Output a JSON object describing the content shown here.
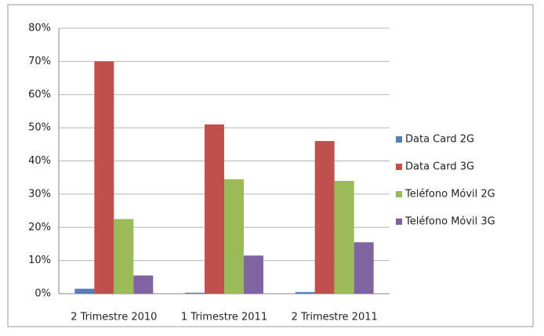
{
  "chart_data": {
    "type": "bar",
    "categories": [
      "2 Trimestre 2010",
      "1 Trimestre 2011",
      "2 Trimestre 2011"
    ],
    "series": [
      {
        "name": "Data Card 2G",
        "color": "#4f81bd",
        "values": [
          1.5,
          0.3,
          0.5
        ]
      },
      {
        "name": "Data Card 3G",
        "color": "#c0504d",
        "values": [
          70,
          51,
          46
        ]
      },
      {
        "name": "Teléfono Móvil 2G",
        "color": "#9bbb59",
        "values": [
          22.5,
          34.5,
          34
        ]
      },
      {
        "name": "Teléfono Móvil 3G",
        "color": "#8064a2",
        "values": [
          5.5,
          11.5,
          15.5
        ]
      }
    ],
    "ylim": [
      0,
      80
    ],
    "yticks": [
      {
        "value": 0,
        "label": "0%"
      },
      {
        "value": 10,
        "label": "10%"
      },
      {
        "value": 20,
        "label": "20%"
      },
      {
        "value": 30,
        "label": "30%"
      },
      {
        "value": 40,
        "label": "40%"
      },
      {
        "value": 50,
        "label": "50%"
      },
      {
        "value": 60,
        "label": "60%"
      },
      {
        "value": 70,
        "label": "70%"
      },
      {
        "value": 80,
        "label": "80%"
      }
    ],
    "grid": true,
    "legend": "right"
  }
}
